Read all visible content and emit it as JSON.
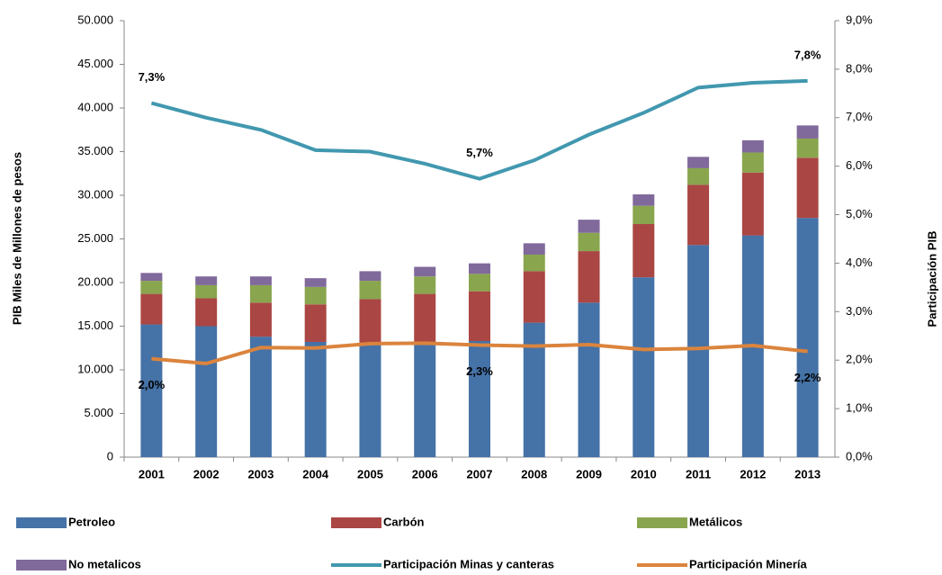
{
  "chart_data": {
    "type": "stacked-bar-line",
    "y_label": "PIB Miles de Millones de pesos",
    "y2_label": "Participación PIB",
    "categories": [
      "2001",
      "2002",
      "2003",
      "2004",
      "2005",
      "2006",
      "2007",
      "2008",
      "2009",
      "2010",
      "2011",
      "2012",
      "2013"
    ],
    "series": [
      {
        "name": "Petroleo",
        "color": "#4572a7",
        "values": [
          15200,
          15000,
          13800,
          13200,
          13100,
          13100,
          13300,
          15400,
          17700,
          20600,
          24300,
          25400,
          27400
        ]
      },
      {
        "name": "Carbón",
        "color": "#aa4643",
        "values": [
          3500,
          3200,
          3900,
          4300,
          5000,
          5600,
          5700,
          5900,
          5900,
          6100,
          6900,
          7200,
          6900
        ]
      },
      {
        "name": "Metálicos",
        "color": "#89a54e",
        "values": [
          1500,
          1500,
          2000,
          2000,
          2100,
          2000,
          2000,
          1900,
          2100,
          2100,
          1900,
          2300,
          2200
        ]
      },
      {
        "name": "No metalicos",
        "color": "#80699b",
        "values": [
          900,
          1000,
          1000,
          1000,
          1100,
          1100,
          1200,
          1300,
          1500,
          1300,
          1300,
          1400,
          1500
        ]
      },
      {
        "name": "Participación Minas y canteras",
        "color": "#4198af",
        "axis": "y2",
        "kind": "line",
        "values": [
          7.3,
          7.0,
          6.75,
          6.33,
          6.3,
          6.05,
          5.74,
          6.12,
          6.65,
          7.1,
          7.62,
          7.72,
          7.76
        ],
        "value_labels": [
          "7,3%",
          null,
          null,
          null,
          null,
          null,
          "5,7%",
          null,
          null,
          null,
          null,
          null,
          "7,8%"
        ]
      },
      {
        "name": "Participación Minería",
        "color": "#db843d",
        "axis": "y2",
        "kind": "line",
        "values": [
          2.03,
          1.93,
          2.26,
          2.25,
          2.34,
          2.35,
          2.31,
          2.29,
          2.32,
          2.22,
          2.24,
          2.3,
          2.18
        ],
        "value_labels": [
          "2,0%",
          null,
          null,
          null,
          null,
          null,
          "2,3%",
          null,
          null,
          null,
          null,
          null,
          "2,2%"
        ]
      }
    ],
    "ylim": [
      0,
      50000
    ],
    "yticks": [
      0,
      {
        "value": 5000,
        "label": "5.000"
      },
      {
        "value": 10000,
        "label": "10.000"
      },
      {
        "value": 15000,
        "label": "15.000"
      },
      {
        "value": 20000,
        "label": "20.000"
      },
      {
        "value": 25000,
        "label": "25.000"
      },
      {
        "value": 30000,
        "label": "30.000"
      },
      {
        "value": 35000,
        "label": "35.000"
      },
      {
        "value": 40000,
        "label": "40.000"
      },
      {
        "value": 45000,
        "label": "45.000"
      },
      {
        "value": 50000,
        "label": "50.000"
      }
    ],
    "y2lim": [
      0,
      9
    ],
    "y2ticks": [
      {
        "value": 0,
        "label": "0,0%"
      },
      {
        "value": 1,
        "label": "1,0%"
      },
      {
        "value": 2,
        "label": "2,0%"
      },
      {
        "value": 3,
        "label": "3,0%"
      },
      {
        "value": 4,
        "label": "4,0%"
      },
      {
        "value": 5,
        "label": "5,0%"
      },
      {
        "value": 6,
        "label": "6,0%"
      },
      {
        "value": 7,
        "label": "7,0%"
      },
      {
        "value": 8,
        "label": "8,0%"
      },
      {
        "value": 9,
        "label": "9,0%"
      }
    ],
    "grid": false,
    "legend": "bottom"
  }
}
